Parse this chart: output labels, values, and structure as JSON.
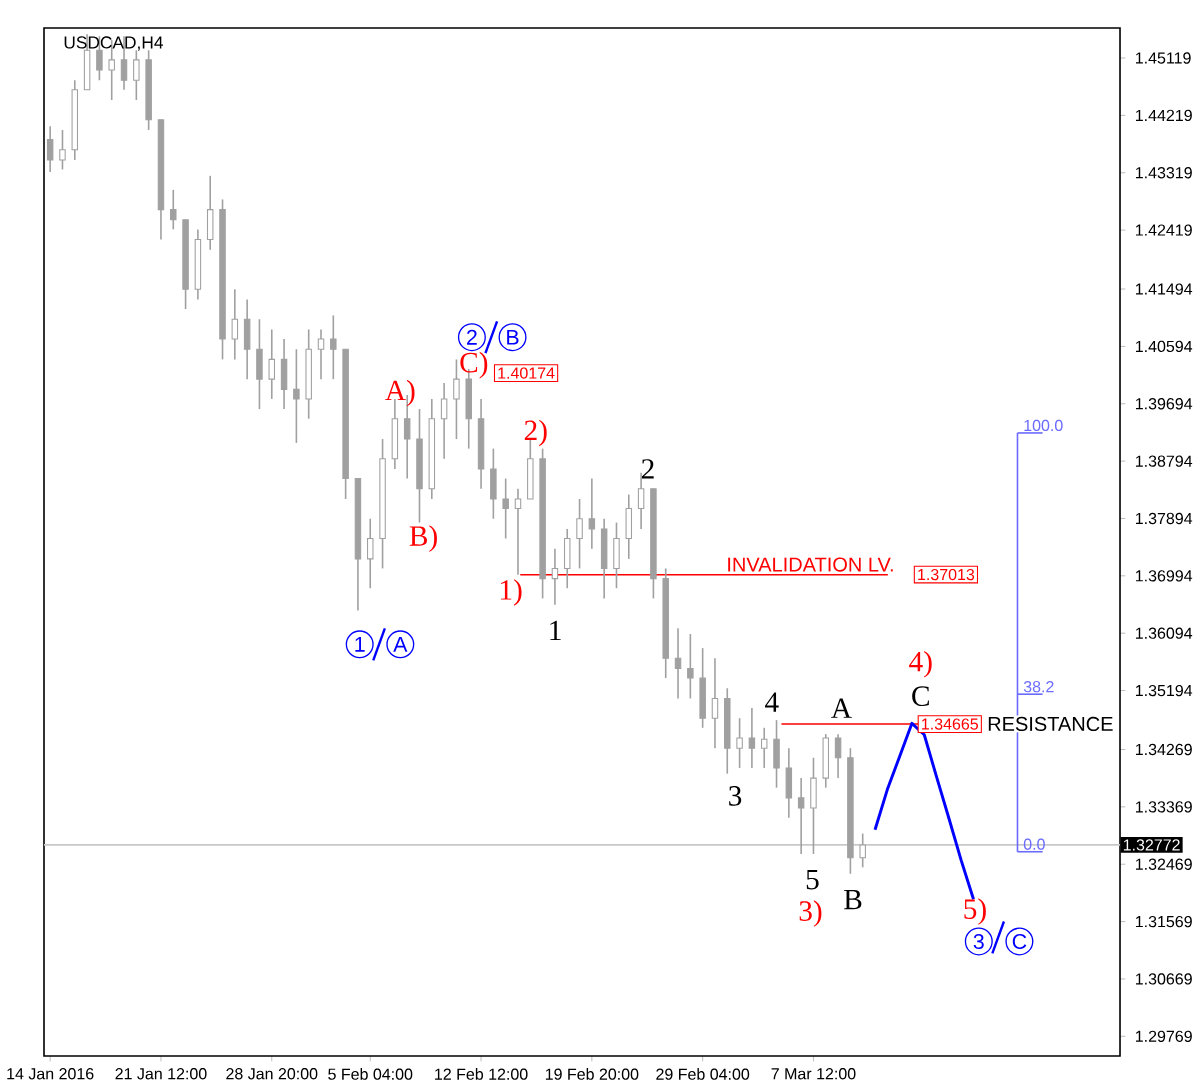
{
  "chart_data": {
    "type": "candlestick",
    "title": "USDCAD,H4",
    "color": "#a0a0a0",
    "categories": [
      "14 Jan 2016",
      null,
      null,
      null,
      null,
      null,
      null,
      null,
      null,
      "21 Jan 12:00",
      null,
      null,
      null,
      null,
      null,
      null,
      null,
      null,
      "28 Jan 20:00",
      null,
      null,
      null,
      null,
      null,
      null,
      null,
      "5 Feb 04:00",
      null,
      null,
      null,
      null,
      null,
      null,
      null,
      null,
      "12 Feb 12:00",
      null,
      null,
      null,
      null,
      null,
      null,
      null,
      null,
      "19 Feb 20:00",
      null,
      null,
      null,
      null,
      null,
      null,
      null,
      null,
      "29 Feb 04:00",
      null,
      null,
      null,
      null,
      null,
      null,
      null,
      null,
      "7 Mar 12:00",
      null,
      null,
      null,
      null,
      null,
      null,
      null,
      null,
      null,
      null,
      null,
      null,
      null,
      null,
      null,
      null,
      null,
      null,
      null,
      null
    ],
    "ohlc": [
      [
        1.4384,
        1.4405,
        1.4333,
        1.4352
      ],
      [
        1.4352,
        1.4399,
        1.4337,
        1.4368
      ],
      [
        1.4368,
        1.4477,
        1.4352,
        1.4462
      ],
      [
        1.4462,
        1.4549,
        1.4462,
        1.4524
      ],
      [
        1.4524,
        1.4546,
        1.4477,
        1.4493
      ],
      [
        1.4493,
        1.454,
        1.4446,
        1.4509
      ],
      [
        1.4509,
        1.4546,
        1.4462,
        1.4477
      ],
      [
        1.4477,
        1.4524,
        1.4446,
        1.4509
      ],
      [
        1.4509,
        1.4524,
        1.4399,
        1.4415
      ],
      [
        1.4415,
        1.4415,
        1.4227,
        1.4274
      ],
      [
        1.4274,
        1.4305,
        1.4243,
        1.4258
      ],
      [
        1.4258,
        1.4258,
        1.4118,
        1.4149
      ],
      [
        1.4149,
        1.4243,
        1.4133,
        1.4227
      ],
      [
        1.4227,
        1.4327,
        1.4211,
        1.4274
      ],
      [
        1.4274,
        1.429,
        1.4039,
        1.4071
      ],
      [
        1.4071,
        1.4149,
        1.4039,
        1.4102
      ],
      [
        1.4102,
        1.4133,
        1.4008,
        1.4055
      ],
      [
        1.4055,
        1.4102,
        1.3961,
        1.4008
      ],
      [
        1.4008,
        1.4086,
        1.3977,
        1.4039
      ],
      [
        1.4039,
        1.4071,
        1.3961,
        1.3992
      ],
      [
        1.3992,
        1.4055,
        1.3908,
        1.3977
      ],
      [
        1.3977,
        1.4086,
        1.3946,
        1.4055
      ],
      [
        1.4055,
        1.4086,
        1.4008,
        1.4071
      ],
      [
        1.4071,
        1.4108,
        1.4008,
        1.4055
      ],
      [
        1.4055,
        1.4055,
        1.382,
        1.3852
      ],
      [
        1.3852,
        1.3852,
        1.3645,
        1.3726
      ],
      [
        1.3726,
        1.3789,
        1.368,
        1.3758
      ],
      [
        1.3758,
        1.3914,
        1.3711,
        1.3883
      ],
      [
        1.3883,
        1.3977,
        1.3867,
        1.3946
      ],
      [
        1.3946,
        1.3983,
        1.3852,
        1.3914
      ],
      [
        1.3914,
        1.3961,
        1.3783,
        1.3836
      ],
      [
        1.3836,
        1.3977,
        1.382,
        1.3946
      ],
      [
        1.3946,
        1.4002,
        1.3883,
        1.3977
      ],
      [
        1.3977,
        1.4039,
        1.3914,
        1.4008
      ],
      [
        1.4008,
        1.4024,
        1.3899,
        1.3946
      ],
      [
        1.3946,
        1.3977,
        1.3836,
        1.3867
      ],
      [
        1.3867,
        1.3899,
        1.3789,
        1.382
      ],
      [
        1.382,
        1.3852,
        1.3758,
        1.3805
      ],
      [
        1.3805,
        1.3836,
        1.3701,
        1.382
      ],
      [
        1.382,
        1.3914,
        1.382,
        1.3883
      ],
      [
        1.3883,
        1.3899,
        1.3664,
        1.3695
      ],
      [
        1.3695,
        1.3742,
        1.3654,
        1.3711
      ],
      [
        1.3711,
        1.3773,
        1.368,
        1.3758
      ],
      [
        1.3758,
        1.382,
        1.3711,
        1.3789
      ],
      [
        1.3789,
        1.3852,
        1.3742,
        1.3773
      ],
      [
        1.3773,
        1.3789,
        1.3664,
        1.3711
      ],
      [
        1.3711,
        1.3783,
        1.368,
        1.3758
      ],
      [
        1.3758,
        1.3827,
        1.3726,
        1.3805
      ],
      [
        1.3805,
        1.3861,
        1.3773,
        1.3836
      ],
      [
        1.3836,
        1.3836,
        1.3664,
        1.3695
      ],
      [
        1.3695,
        1.3711,
        1.3539,
        1.357
      ],
      [
        1.357,
        1.3617,
        1.3507,
        1.3554
      ],
      [
        1.3554,
        1.3608,
        1.3507,
        1.3539
      ],
      [
        1.3539,
        1.3586,
        1.3461,
        1.3476
      ],
      [
        1.3476,
        1.357,
        1.3429,
        1.3507
      ],
      [
        1.3507,
        1.3523,
        1.3389,
        1.3429
      ],
      [
        1.3429,
        1.3476,
        1.3398,
        1.3445
      ],
      [
        1.3445,
        1.3492,
        1.3398,
        1.3429
      ],
      [
        1.3429,
        1.3461,
        1.3398,
        1.3443
      ],
      [
        1.3443,
        1.3473,
        1.3367,
        1.3398
      ],
      [
        1.3398,
        1.3429,
        1.332,
        1.3351
      ],
      [
        1.3351,
        1.3382,
        1.3263,
        1.3335
      ],
      [
        1.3335,
        1.3414,
        1.3263,
        1.3382
      ],
      [
        1.3382,
        1.3451,
        1.3367,
        1.3445
      ],
      [
        1.3445,
        1.3451,
        1.3382,
        1.3414
      ],
      [
        1.3414,
        1.3429,
        1.3232,
        1.3257
      ],
      [
        1.3257,
        1.3295,
        1.3242,
        1.3277
      ],
      null,
      null,
      null,
      null,
      null,
      null,
      null,
      null,
      null,
      null,
      null,
      null,
      null,
      null,
      null,
      null
    ],
    "series": [
      {
        "type": "line",
        "color": "#0000ff",
        "values": [
          null,
          null,
          null,
          null,
          null,
          null,
          null,
          null,
          null,
          null,
          null,
          null,
          null,
          null,
          null,
          null,
          null,
          null,
          null,
          null,
          null,
          null,
          null,
          null,
          null,
          null,
          null,
          null,
          null,
          null,
          null,
          null,
          null,
          null,
          null,
          null,
          null,
          null,
          null,
          null,
          null,
          null,
          null,
          null,
          null,
          null,
          null,
          null,
          null,
          null,
          null,
          null,
          null,
          null,
          null,
          null,
          null,
          null,
          null,
          null,
          null,
          null,
          null,
          null,
          null,
          null,
          null,
          1.3301,
          1.3364,
          1.3416,
          1.3468,
          1.345,
          1.3384,
          1.3319,
          1.3253,
          1.3192,
          null,
          null,
          null,
          null,
          null,
          null,
          null
        ]
      }
    ],
    "ylim": [
      1.2946,
      1.4559
    ],
    "yticks": [
      1.29769,
      1.30669,
      1.31569,
      1.32469,
      1.33369,
      1.34269,
      1.35194,
      1.36094,
      1.36994,
      1.37894,
      1.38794,
      1.39694,
      1.40594,
      1.41494,
      1.42419,
      1.43319,
      1.44219,
      1.45119
    ],
    "ref_lines": [
      {
        "axis": "y",
        "value": 1.32772,
        "label": "1.32772",
        "color": "#c8c8c8"
      },
      {
        "axis": "y",
        "value": 1.3701,
        "label": "INVALIDATION LV.",
        "color": "#ff0000"
      },
      {
        "axis": "y",
        "value": 1.3467,
        "label": "RESISTANCE",
        "color": "#ff0000"
      }
    ],
    "annotations": [
      "1",
      "A",
      "A)",
      "B)",
      "C)",
      "2",
      "B",
      "1.40174",
      "2)",
      "1)",
      "1",
      "2",
      "1.37013",
      "3",
      "4",
      "5",
      "3)",
      "A",
      "B",
      "4)",
      "C",
      "1.34665",
      "5)",
      "3",
      "C",
      "100.0",
      "38.2",
      "0.0"
    ],
    "grid": false
  }
}
